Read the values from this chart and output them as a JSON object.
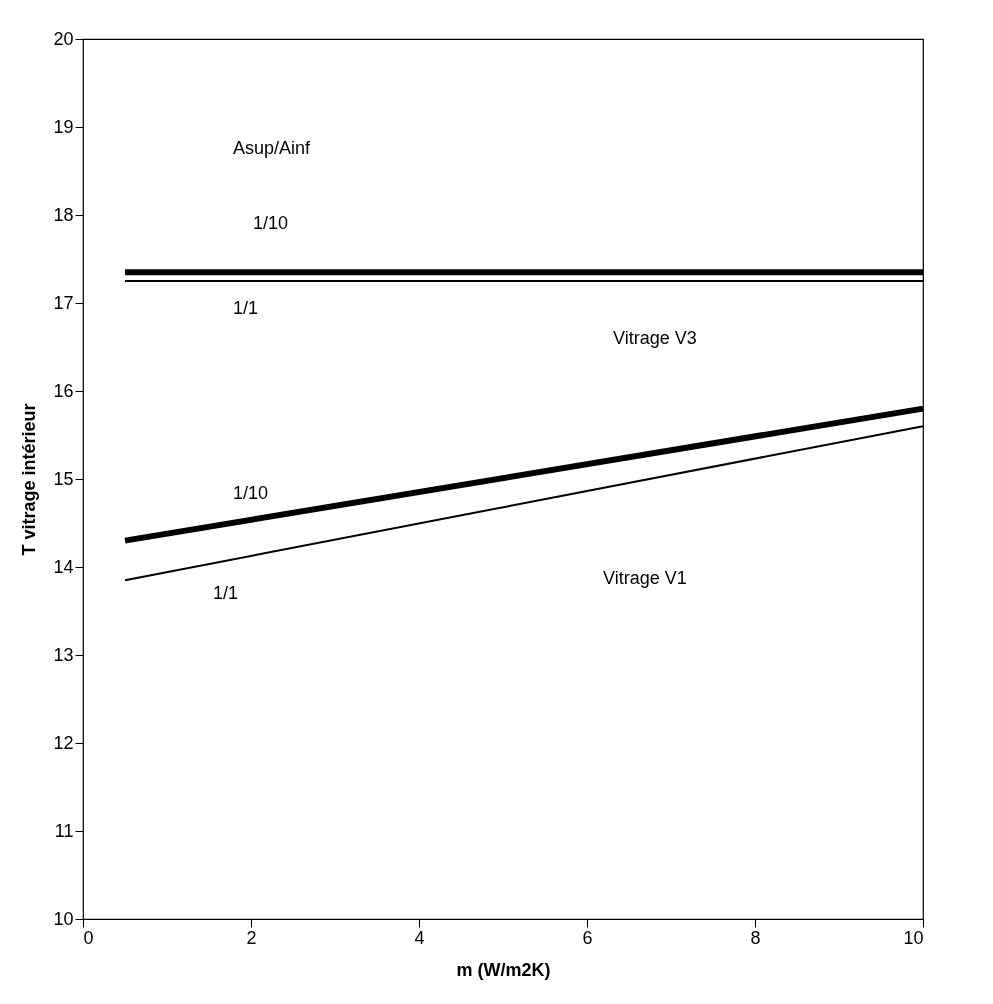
{
  "chart_data": {
    "type": "line",
    "xlabel": "m  (W/m2K)",
    "ylabel": "T vitrage intérieur",
    "x": [
      0.5,
      10
    ],
    "series": [
      {
        "color": "#000000",
        "values": [
          17.35,
          17.35
        ]
      },
      {
        "color": "#000000",
        "values": [
          17.25,
          17.25
        ]
      },
      {
        "color": "#000000",
        "values": [
          14.3,
          15.8
        ]
      },
      {
        "color": "#000000",
        "values": [
          13.85,
          15.6
        ]
      }
    ],
    "xlim": [
      0,
      10
    ],
    "xticks": [
      0,
      2,
      4,
      6,
      8,
      10
    ],
    "ylim": [
      10,
      20
    ],
    "yticks": [
      10,
      11,
      12,
      13,
      14,
      15,
      16,
      17,
      18,
      19,
      20
    ],
    "grid": false,
    "legend": false,
    "marker": "none",
    "line_style": "solid",
    "annotations": [
      "Asup/Ainf",
      "1/10",
      "1/1",
      "Vitrage V3",
      "1/10",
      "1/1",
      "Vitrage V1"
    ]
  }
}
